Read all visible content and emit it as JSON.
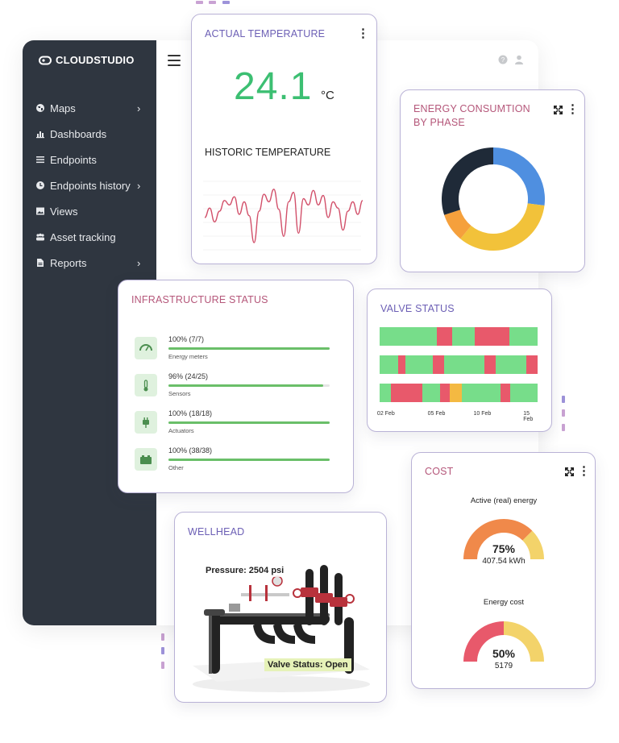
{
  "colors": {
    "sidebar_bg": "#2f3640",
    "card_border": "#b9b2d6",
    "title_purple": "#6c5fb5",
    "title_pink": "#b5577a",
    "temperature_green": "#3cbf72",
    "progress_green": "#6abf69",
    "valve_open": "#77dd8a",
    "valve_closed": "#e8596b",
    "valve_partial": "#f4b942",
    "donut_blue": "#4f8fe0",
    "donut_yellow": "#f2c23a",
    "donut_orange": "#f5a03c",
    "donut_dark": "#1f2a38",
    "gauge_red": "#e8596b",
    "gauge_orange": "#f0894a",
    "gauge_yellow": "#f3d36a"
  },
  "app": {
    "brand": "CLOUDSTUDIO",
    "logo_icon": "cloud-logo-icon",
    "sidebar": {
      "items": [
        {
          "label": "Maps",
          "icon": "globe-icon",
          "has_submenu": true
        },
        {
          "label": "Dashboards",
          "icon": "bar-chart-icon",
          "has_submenu": false
        },
        {
          "label": "Endpoints",
          "icon": "list-icon",
          "has_submenu": false
        },
        {
          "label": "Endpoints history",
          "icon": "clock-icon",
          "has_submenu": true
        },
        {
          "label": "Views",
          "icon": "image-icon",
          "has_submenu": false
        },
        {
          "label": "Asset tracking",
          "icon": "tracking-icon",
          "has_submenu": false
        },
        {
          "label": "Reports",
          "icon": "document-icon",
          "has_submenu": true
        }
      ]
    },
    "header": {
      "menu_icon": "hamburger-icon",
      "help_icon": "help-icon",
      "user_icon": "user-icon"
    }
  },
  "temperature_card": {
    "title": "ACTUAL TEMPERATURE",
    "value": "24.1",
    "unit": "°C",
    "history_title": "HISTORIC TEMPERATURE",
    "history_series": [
      0.55,
      0.4,
      0.62,
      0.45,
      0.28,
      0.35,
      0.22,
      0.5,
      0.3,
      0.52,
      0.95,
      0.45,
      0.18,
      0.3,
      0.1,
      0.42,
      0.85,
      0.3,
      0.15,
      0.8,
      0.25,
      0.35,
      0.12,
      0.35,
      0.2,
      0.55,
      0.3,
      0.4,
      0.75,
      0.45,
      0.3,
      0.5,
      0.28
    ]
  },
  "energy_card": {
    "title_line1": "ENERGY CONSUMTION",
    "title_line2": "BY PHASE",
    "chart_data": {
      "type": "pie",
      "slices": [
        {
          "value": 27,
          "color": "#4f8fe0"
        },
        {
          "value": 34,
          "color": "#f2c23a"
        },
        {
          "value": 9,
          "color": "#f5a03c"
        },
        {
          "value": 30,
          "color": "#1f2a38"
        }
      ]
    }
  },
  "infrastructure_card": {
    "title": "INFRASTRUCTURE STATUS",
    "items": [
      {
        "value": "100% (7/7)",
        "label": "Energy meters",
        "fraction": 1.0,
        "icon": "gauge-icon"
      },
      {
        "value": "96% (24/25)",
        "label": "Sensors",
        "fraction": 0.96,
        "icon": "thermometer-icon"
      },
      {
        "value": "100% (18/18)",
        "label": "Actuators",
        "fraction": 1.0,
        "icon": "plug-icon"
      },
      {
        "value": "100% (38/38)",
        "label": "Other",
        "fraction": 1.0,
        "icon": "battery-icon"
      }
    ]
  },
  "valve_card": {
    "title": "VALVE STATUS",
    "tick_labels": [
      "02 Feb",
      "05 Feb",
      "10 Feb",
      "15 Feb"
    ],
    "rows": [
      [
        [
          "open",
          0.36
        ],
        [
          "closed",
          0.1
        ],
        [
          "open",
          0.14
        ],
        [
          "closed",
          0.22
        ],
        [
          "open",
          0.18
        ]
      ],
      [
        [
          "open",
          0.13
        ],
        [
          "closed",
          0.05
        ],
        [
          "open",
          0.19
        ],
        [
          "closed",
          0.08
        ],
        [
          "open",
          0.28
        ],
        [
          "closed",
          0.08
        ],
        [
          "open",
          0.21
        ],
        [
          "closed",
          0.08
        ]
      ],
      [
        [
          "open",
          0.08
        ],
        [
          "closed",
          0.22
        ],
        [
          "open",
          0.12
        ],
        [
          "closed",
          0.07
        ],
        [
          "partial",
          0.08
        ],
        [
          "open",
          0.27
        ],
        [
          "closed",
          0.07
        ],
        [
          "open",
          0.19
        ]
      ]
    ]
  },
  "wellhead_card": {
    "title": "WELLHEAD",
    "pressure": "Pressure: 2504 psi",
    "valve_status": "Valve Status: Open"
  },
  "cost_card": {
    "title": "COST",
    "gauges": [
      {
        "title": "Active (real) energy",
        "percent": "75%",
        "value": "407.54 kWh",
        "fraction": 0.75
      },
      {
        "title": "Energy cost",
        "percent": "50%",
        "value": "5179",
        "fraction": 0.5
      }
    ]
  }
}
